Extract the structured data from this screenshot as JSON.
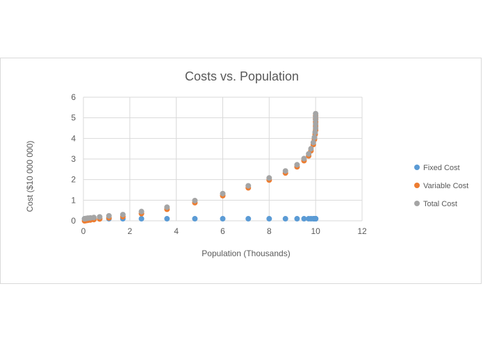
{
  "chart_data": {
    "type": "scatter",
    "title": "Costs vs. Population",
    "xlabel": "Population (Thousands)",
    "ylabel": "Cost ($10 000 000)",
    "xlim": [
      0,
      12
    ],
    "ylim": [
      0,
      6
    ],
    "xticks": [
      0,
      2,
      4,
      6,
      8,
      10,
      12
    ],
    "yticks": [
      0,
      1,
      2,
      3,
      4,
      5,
      6
    ],
    "grid": true,
    "legend_position": "right",
    "x": [
      0.05,
      0.1,
      0.15,
      0.2,
      0.3,
      0.45,
      0.7,
      1.1,
      1.7,
      2.5,
      3.6,
      4.8,
      6.0,
      7.1,
      8.0,
      8.7,
      9.2,
      9.5,
      9.7,
      9.8,
      9.9,
      9.95,
      9.98,
      10.0,
      10.0,
      10.0,
      10.0,
      10.0
    ],
    "series": [
      {
        "name": "Fixed Cost",
        "color": "#5b9bd5",
        "values": [
          0.1,
          0.1,
          0.1,
          0.1,
          0.1,
          0.1,
          0.1,
          0.1,
          0.1,
          0.1,
          0.1,
          0.1,
          0.1,
          0.1,
          0.1,
          0.1,
          0.1,
          0.1,
          0.1,
          0.1,
          0.1,
          0.1,
          0.1,
          0.1,
          0.1,
          0.1,
          0.1,
          0.1
        ]
      },
      {
        "name": "Variable Cost",
        "color": "#ed7d31",
        "values": [
          0.0,
          0.01,
          0.02,
          0.03,
          0.04,
          0.06,
          0.09,
          0.14,
          0.2,
          0.35,
          0.56,
          0.88,
          1.22,
          1.6,
          1.98,
          2.32,
          2.62,
          2.92,
          3.15,
          3.4,
          3.7,
          3.95,
          4.2,
          4.4,
          4.6,
          4.8,
          4.95,
          5.1
        ]
      },
      {
        "name": "Total Cost",
        "color": "#a5a5a5",
        "values": [
          0.1,
          0.11,
          0.12,
          0.13,
          0.14,
          0.16,
          0.19,
          0.24,
          0.3,
          0.45,
          0.66,
          0.98,
          1.32,
          1.7,
          2.08,
          2.42,
          2.72,
          3.02,
          3.25,
          3.5,
          3.8,
          4.05,
          4.3,
          4.5,
          4.7,
          4.9,
          5.05,
          5.2
        ]
      }
    ]
  }
}
